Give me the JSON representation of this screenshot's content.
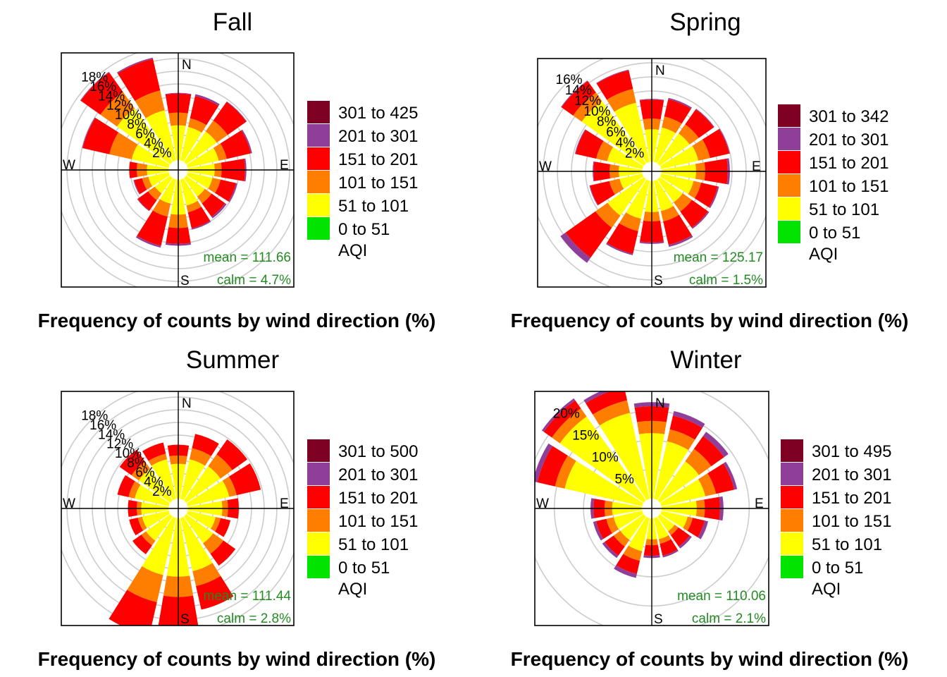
{
  "palette": {
    "0 to 51": "#00e400",
    "51 to 101": "#ffff00",
    "101 to 151": "#ff7e00",
    "151 to 201": "#ff0000",
    "201 to 301": "#8f3f97",
    "301+": "#7e0023",
    "calm_text": "#228b22",
    "ring": "#cccccc"
  },
  "chart_data": [
    {
      "type": "windrose",
      "title": "Fall",
      "xlabel": "Frequency of counts by wind direction (%)",
      "directions": [
        "N",
        "NNE",
        "NE",
        "ENE",
        "E",
        "ESE",
        "SE",
        "SSE",
        "S",
        "SSW",
        "SW",
        "WSW",
        "W",
        "WNW",
        "NW",
        "NNW"
      ],
      "compass": [
        "N",
        "E",
        "S",
        "W"
      ],
      "max": 19,
      "rings": [
        2,
        4,
        6,
        8,
        10,
        12,
        14,
        16,
        18
      ],
      "ring_labels": [
        "2%",
        "4%",
        "6%",
        "8%",
        "10%",
        "12%",
        "14%",
        "16%",
        "18%"
      ],
      "legend_title": "AQI",
      "legend": [
        "301 to 425",
        "201 to 301",
        "151 to 201",
        "101 to 151",
        "51 to 101",
        "0 to 51"
      ],
      "mean": "mean = 111.66",
      "calm": "calm = 4.7%",
      "series": [
        {
          "name": "0 to 51",
          "values": [
            0,
            0,
            0,
            0,
            0,
            0,
            0,
            0,
            0,
            0,
            0,
            0,
            0,
            0,
            0,
            0
          ]
        },
        {
          "name": "51 to 101",
          "values": [
            5.5,
            5.4,
            5.9,
            5.0,
            4.2,
            4.0,
            3.6,
            4.2,
            5.5,
            3.9,
            3.0,
            3.3,
            3.4,
            6.0,
            10.3,
            8.1
          ]
        },
        {
          "name": "101 to 151",
          "values": [
            7.5,
            6.8,
            8.0,
            6.3,
            5.3,
            5.3,
            4.9,
            5.3,
            7.6,
            6.0,
            4.3,
            4.3,
            5.0,
            9.6,
            13.5,
            11.3
          ]
        },
        {
          "name": "151 to 201",
          "values": [
            10.5,
            10.4,
            11.6,
            10.2,
            9.0,
            7.8,
            7.5,
            7.9,
            10.1,
            10.7,
            6.3,
            5.6,
            6.2,
            13.9,
            17.3,
            16.4
          ]
        },
        {
          "name": "201 to 301",
          "values": [
            10.6,
            10.7,
            11.7,
            10.4,
            9.2,
            8.0,
            7.8,
            8.1,
            10.4,
            11.0,
            6.4,
            5.7,
            6.2,
            14.0,
            17.4,
            16.6
          ]
        },
        {
          "name": "301 to 425",
          "values": [
            10.6,
            10.7,
            11.7,
            10.4,
            9.2,
            8.0,
            7.8,
            8.1,
            10.4,
            11.0,
            6.4,
            5.7,
            6.2,
            14.0,
            17.4,
            16.6
          ]
        }
      ]
    },
    {
      "type": "windrose",
      "title": "Spring",
      "xlabel": "Frequency of counts by wind direction (%)",
      "directions": [
        "N",
        "NNE",
        "NE",
        "ENE",
        "E",
        "ESE",
        "SE",
        "SSE",
        "S",
        "SSW",
        "SW",
        "WSW",
        "W",
        "WNW",
        "NW",
        "NNW"
      ],
      "compass": [
        "N",
        "E",
        "S",
        "W"
      ],
      "max": 17,
      "rings": [
        2,
        4,
        6,
        8,
        10,
        12,
        14,
        16
      ],
      "ring_labels": [
        "2%",
        "4%",
        "6%",
        "8%",
        "10%",
        "12%",
        "14%",
        "16%"
      ],
      "legend_title": "AQI",
      "legend": [
        "301 to 342",
        "201 to 301",
        "151 to 201",
        "101 to 151",
        "51 to 101",
        "0 to 51"
      ],
      "mean": "mean = 125.17",
      "calm": "calm = 1.5%",
      "series": [
        {
          "name": "0 to 51",
          "values": [
            0,
            0,
            0,
            0,
            0,
            0,
            0,
            0,
            0,
            0,
            0,
            0,
            0,
            0,
            0,
            0
          ]
        },
        {
          "name": "51 to 101",
          "values": [
            4.6,
            5.0,
            5.2,
            5.4,
            4.9,
            4.7,
            4.0,
            4.4,
            4.4,
            5.5,
            6.3,
            3.3,
            3.3,
            5.1,
            10.8,
            8.6
          ]
        },
        {
          "name": "101 to 151",
          "values": [
            6.1,
            6.6,
            6.8,
            7.1,
            6.2,
            5.8,
            5.6,
            5.9,
            5.7,
            7.3,
            8.4,
            4.8,
            4.6,
            6.7,
            12.3,
            10.6
          ]
        },
        {
          "name": "151 to 201",
          "values": [
            8.8,
            9.1,
            9.4,
            9.9,
            9.4,
            8.2,
            8.4,
            9.3,
            8.7,
            10.6,
            13.6,
            7.6,
            6.9,
            9.7,
            14.3,
            13.3
          ]
        },
        {
          "name": "201 to 301",
          "values": [
            8.9,
            9.3,
            9.5,
            10.0,
            9.7,
            8.4,
            8.6,
            9.6,
            8.9,
            10.8,
            14.5,
            7.7,
            7.0,
            9.8,
            14.4,
            13.4
          ]
        },
        {
          "name": "301 to 342",
          "values": [
            8.9,
            9.3,
            9.5,
            10.0,
            9.7,
            8.4,
            8.6,
            9.6,
            8.9,
            10.8,
            14.5,
            7.7,
            7.0,
            9.8,
            14.4,
            13.4
          ]
        }
      ]
    },
    {
      "type": "windrose",
      "title": "Summer",
      "xlabel": "Frequency of counts by wind direction (%)",
      "directions": [
        "N",
        "NNE",
        "NE",
        "ENE",
        "E",
        "ESE",
        "SE",
        "SSE",
        "S",
        "SSW",
        "SW",
        "WSW",
        "W",
        "WNW",
        "NW",
        "NNW"
      ],
      "compass": [
        "N",
        "E",
        "S",
        "W"
      ],
      "max": 19,
      "rings": [
        2,
        4,
        6,
        8,
        10,
        12,
        14,
        16,
        18
      ],
      "ring_labels": [
        "2%",
        "4%",
        "6%",
        "8%",
        "10%",
        "12%",
        "14%",
        "16%",
        "18%"
      ],
      "legend_title": "AQI",
      "legend": [
        "301 to 500",
        "201 to 301",
        "151 to 201",
        "101 to 151",
        "51 to 101",
        "0 to 51"
      ],
      "mean": "mean = 111.44",
      "calm": "calm = 2.8%",
      "series": [
        {
          "name": "0 to 51",
          "values": [
            0,
            0,
            0,
            0,
            0,
            0,
            0,
            0,
            0,
            0,
            0,
            0,
            0,
            0,
            0,
            0
          ]
        },
        {
          "name": "51 to 101",
          "values": [
            5.5,
            6.4,
            6.6,
            6.7,
            5.4,
            4.5,
            5.2,
            8.6,
            9.2,
            9.2,
            4.7,
            4.3,
            4.3,
            5.5,
            6.1,
            6.4
          ]
        },
        {
          "name": "101 to 151",
          "values": [
            6.8,
            8.2,
            8.9,
            7.9,
            6.3,
            5.3,
            7.2,
            11.0,
            12.4,
            13.6,
            5.6,
            5.0,
            5.0,
            6.5,
            7.5,
            7.3
          ]
        },
        {
          "name": "151 to 201",
          "values": [
            8.5,
            10.5,
            11.8,
            11.8,
            8.0,
            6.9,
            9.5,
            14.8,
            17.1,
            19.0,
            7.3,
            6.4,
            6.4,
            8.3,
            9.8,
            9.1
          ]
        },
        {
          "name": "201 to 301",
          "values": [
            8.5,
            10.5,
            11.8,
            11.8,
            8.0,
            6.9,
            9.5,
            14.8,
            17.1,
            19.0,
            7.3,
            6.4,
            6.4,
            8.3,
            9.8,
            9.1
          ]
        },
        {
          "name": "301 to 500",
          "values": [
            8.5,
            10.5,
            11.8,
            11.8,
            8.0,
            6.9,
            9.5,
            14.8,
            17.1,
            19.0,
            7.3,
            6.4,
            6.4,
            8.3,
            9.8,
            9.1
          ]
        }
      ]
    },
    {
      "type": "windrose",
      "title": "Winter",
      "xlabel": "Frequency of counts by wind direction (%)",
      "directions": [
        "N",
        "NNE",
        "NE",
        "ENE",
        "E",
        "ESE",
        "SE",
        "SSE",
        "S",
        "SSW",
        "SW",
        "WSW",
        "W",
        "WNW",
        "NW",
        "NNW"
      ],
      "compass": [
        "N",
        "E",
        "S",
        "W"
      ],
      "max": 21,
      "rings": [
        5,
        10,
        15,
        20
      ],
      "ring_labels": [
        "5%",
        "10%",
        "15%",
        "20%"
      ],
      "legend_title": "AQI",
      "legend": [
        "301 to 495",
        "201 to 301",
        "151 to 201",
        "101 to 151",
        "51 to 101",
        "0 to 51"
      ],
      "mean": "mean = 110.06",
      "calm": "calm = 2.1%",
      "series": [
        {
          "name": "0 to 51",
          "values": [
            0,
            0,
            0,
            0,
            0,
            0,
            0,
            0,
            0,
            0,
            0,
            0,
            0,
            0,
            0,
            0
          ]
        },
        {
          "name": "51 to 101",
          "values": [
            11.2,
            10.1,
            8.2,
            7.7,
            6.0,
            4.6,
            3.1,
            3.7,
            3.6,
            5.8,
            4.9,
            5.0,
            5.1,
            13.6,
            17.6,
            15.1
          ]
        },
        {
          "name": "101 to 151",
          "values": [
            13.3,
            12.2,
            10.8,
            9.6,
            7.4,
            5.5,
            3.9,
            4.5,
            4.6,
            7.5,
            6.3,
            6.3,
            6.4,
            15.3,
            19.3,
            17.3
          ]
        },
        {
          "name": "151 to 201",
          "values": [
            15.8,
            14.6,
            13.5,
            12.8,
            10.0,
            7.6,
            6.3,
            6.6,
            6.4,
            9.8,
            8.2,
            8.1,
            8.3,
            18.4,
            21.0,
            19.6
          ]
        },
        {
          "name": "201 to 301",
          "values": [
            16.5,
            15.4,
            14.4,
            13.3,
            10.6,
            8.2,
            6.7,
            6.9,
            6.8,
            10.5,
            8.7,
            8.6,
            8.8,
            19.2,
            21.4,
            20.2
          ]
        },
        {
          "name": "301 to 495",
          "values": [
            16.5,
            15.4,
            14.4,
            13.3,
            10.6,
            8.2,
            6.7,
            6.9,
            6.8,
            10.5,
            8.7,
            8.6,
            8.8,
            19.2,
            21.4,
            20.2
          ]
        }
      ]
    }
  ]
}
